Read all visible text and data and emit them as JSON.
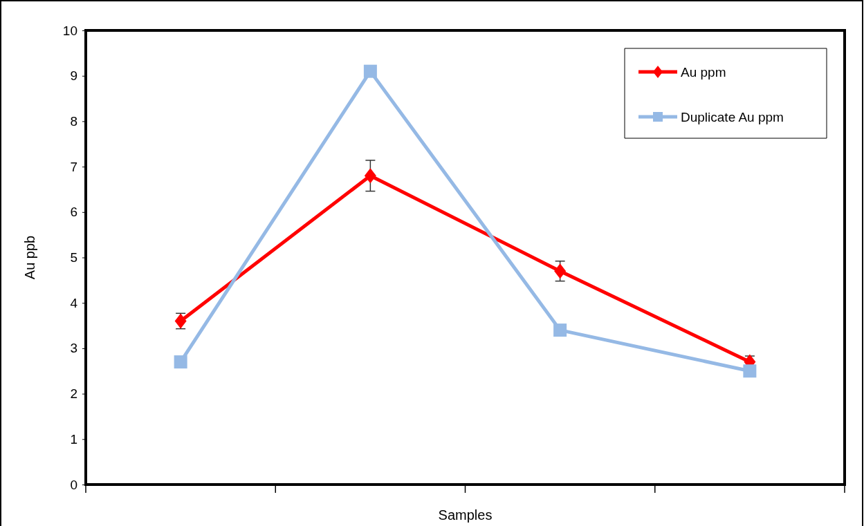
{
  "chart_data": {
    "type": "line",
    "xlabel": "Samples",
    "ylabel": "Au ppb",
    "categories": [
      null,
      null,
      null,
      null
    ],
    "series": [
      {
        "name": "Au ppm",
        "color": "#ff0000",
        "marker": "diamond",
        "values": [
          3.6,
          6.8,
          4.7,
          2.7
        ],
        "errors": [
          0.17,
          0.34,
          0.22,
          0.13
        ]
      },
      {
        "name": "Duplicate Au ppm",
        "color": "#95b9e5",
        "marker": "square",
        "values": [
          2.7,
          9.1,
          3.4,
          2.5
        ]
      }
    ],
    "ylim": [
      0,
      10
    ],
    "yticks": [
      0,
      1,
      2,
      3,
      4,
      5,
      6,
      7,
      8,
      9,
      10
    ],
    "grid": false,
    "tick_labels": "y",
    "legend": "top right",
    "line_style": "solid"
  }
}
